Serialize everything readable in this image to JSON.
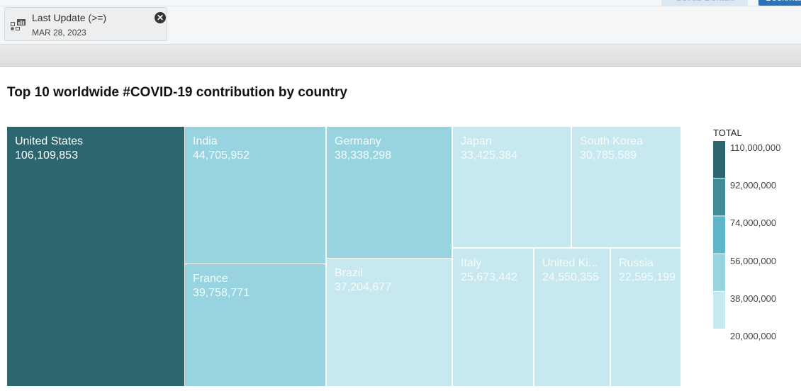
{
  "toolbar": {
    "set_default_label": "Set as Default",
    "bookmark_label": "Bookmark"
  },
  "filter": {
    "label": "Last Update (>=)",
    "value": "MAR 28, 2023",
    "close_icon": "close-circle-icon",
    "filter_icon": "filter-chart-icon"
  },
  "chart_data": {
    "type": "treemap",
    "title": "Top 10 worldwide #COVID-19 contribution by country",
    "items": [
      {
        "label": "United States",
        "display_label": "United States",
        "value": 106109853,
        "display_value": "106,109,853"
      },
      {
        "label": "India",
        "display_label": "India",
        "value": 44705952,
        "display_value": "44,705,952"
      },
      {
        "label": "France",
        "display_label": "France",
        "value": 39758771,
        "display_value": "39,758,771"
      },
      {
        "label": "Germany",
        "display_label": "Germany",
        "value": 38338298,
        "display_value": "38,338,298"
      },
      {
        "label": "Brazil",
        "display_label": "Brazil",
        "value": 37204677,
        "display_value": "37,204,677"
      },
      {
        "label": "Japan",
        "display_label": "Japan",
        "value": 33425384,
        "display_value": "33,425,384"
      },
      {
        "label": "South Korea",
        "display_label": "South Korea",
        "value": 30785589,
        "display_value": "30,785,589"
      },
      {
        "label": "Italy",
        "display_label": "Italy",
        "value": 25673442,
        "display_value": "25,673,442"
      },
      {
        "label": "United Kingdom",
        "display_label": "United Ki...",
        "value": 24550355,
        "display_value": "24,550,355"
      },
      {
        "label": "Russia",
        "display_label": "Russia",
        "value": 22595199,
        "display_value": "22,595,199"
      }
    ],
    "legend": {
      "title": "TOTAL",
      "placement": "right",
      "ticks": [
        "110,000,000",
        "92,000,000",
        "74,000,000",
        "56,000,000",
        "38,000,000",
        "20,000,000"
      ],
      "bins": [
        {
          "min": 92000000,
          "max": 110000000,
          "color": "#2e6670"
        },
        {
          "min": 74000000,
          "max": 92000000,
          "color": "#418c98"
        },
        {
          "min": 56000000,
          "max": 74000000,
          "color": "#5eb6c8"
        },
        {
          "min": 38000000,
          "max": 56000000,
          "color": "#98d3e0"
        },
        {
          "min": 20000000,
          "max": 38000000,
          "color": "#c7e8ef"
        }
      ]
    }
  }
}
